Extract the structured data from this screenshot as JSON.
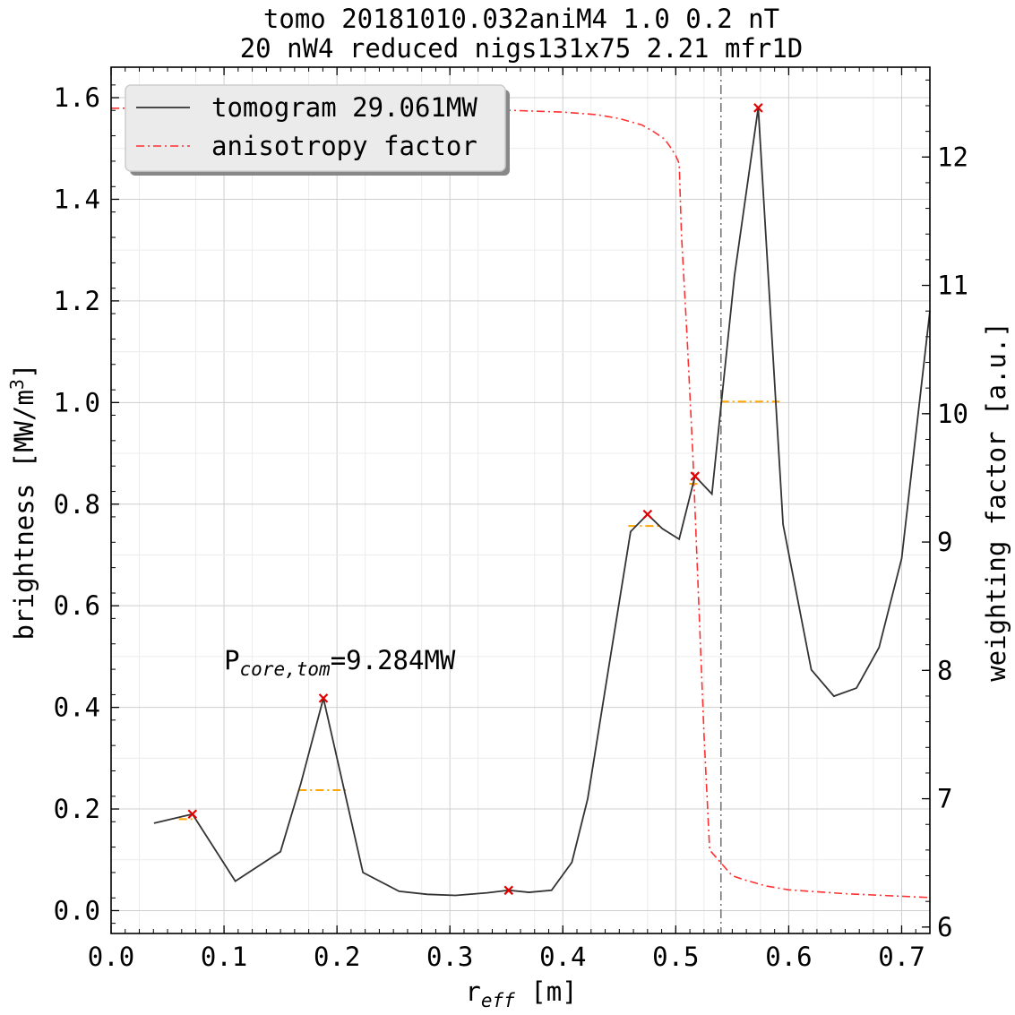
{
  "chart_data": {
    "type": "line",
    "title_lines": [
      "tomo 20181010.032aniM4  1.0 0.2  nT",
      "20 nW4 reduced nigs131x75 2.21 mfr1D"
    ],
    "xlabel": {
      "main": "r",
      "sub": "eff",
      "rest": " [m]"
    },
    "ylabel": {
      "main": "brightness [MW/m",
      "sup": "3",
      "rest": "]"
    },
    "y2label": "weighting factor [a.u.]",
    "xlim": [
      0.0,
      0.725
    ],
    "ylim": [
      -0.045,
      1.66
    ],
    "y2lim": [
      5.95,
      12.7
    ],
    "xticks": [
      "0.0",
      "0.1",
      "0.2",
      "0.3",
      "0.4",
      "0.5",
      "0.6",
      "0.7"
    ],
    "yticks": [
      "0.0",
      "0.2",
      "0.4",
      "0.6",
      "0.8",
      "1.0",
      "1.2",
      "1.4",
      "1.6"
    ],
    "y2ticks": [
      "6",
      "7",
      "8",
      "9",
      "10",
      "11",
      "12"
    ],
    "grid": true,
    "legend_position": "top-left",
    "annotation": {
      "main": "P",
      "sub": "core,tom",
      "rest": "=9.284MW",
      "x": 0.1,
      "y": 0.475
    },
    "vline_x": 0.54,
    "colors": {
      "tomogram": "#333333",
      "anisotropy": "#ff3030",
      "peaks": "#e00000",
      "segments": "#ffa500",
      "vline": "#777777"
    },
    "series": [
      {
        "name": "tomogram 29.061MW",
        "axis": "left",
        "x": [
          0.038,
          0.072,
          0.11,
          0.15,
          0.168,
          0.188,
          0.223,
          0.255,
          0.28,
          0.305,
          0.333,
          0.352,
          0.37,
          0.39,
          0.408,
          0.422,
          0.44,
          0.46,
          0.475,
          0.488,
          0.503,
          0.517,
          0.532,
          0.552,
          0.573,
          0.595,
          0.62,
          0.64,
          0.66,
          0.68,
          0.7,
          0.725
        ],
        "y": [
          0.172,
          0.19,
          0.058,
          0.116,
          0.25,
          0.418,
          0.075,
          0.038,
          0.032,
          0.03,
          0.035,
          0.04,
          0.036,
          0.04,
          0.095,
          0.22,
          0.47,
          0.746,
          0.78,
          0.752,
          0.731,
          0.855,
          0.82,
          1.25,
          1.58,
          0.76,
          0.474,
          0.422,
          0.438,
          0.518,
          0.693,
          1.18
        ]
      },
      {
        "name": "anisotropy factor",
        "axis": "right",
        "x": [
          0.0,
          0.1,
          0.2,
          0.3,
          0.35,
          0.4,
          0.43,
          0.45,
          0.47,
          0.48,
          0.49,
          0.495,
          0.5,
          0.503,
          0.505,
          0.51,
          0.515,
          0.52,
          0.525,
          0.53,
          0.54,
          0.55,
          0.56,
          0.58,
          0.6,
          0.65,
          0.7,
          0.725
        ],
        "y": [
          12.38,
          12.38,
          12.37,
          12.37,
          12.365,
          12.35,
          12.33,
          12.3,
          12.25,
          12.2,
          12.14,
          12.08,
          12.01,
          11.95,
          11.4,
          10.6,
          9.7,
          8.6,
          7.5,
          6.6,
          6.5,
          6.4,
          6.37,
          6.32,
          6.29,
          6.26,
          6.24,
          6.23
        ]
      }
    ],
    "peaks": {
      "x": [
        0.072,
        0.188,
        0.352,
        0.475,
        0.517,
        0.573
      ],
      "y": [
        0.19,
        0.418,
        0.04,
        0.78,
        0.855,
        1.58
      ]
    },
    "segments": [
      {
        "x1": 0.06,
        "x2": 0.075,
        "y": 0.18
      },
      {
        "x1": 0.166,
        "x2": 0.208,
        "y": 0.237
      },
      {
        "x1": 0.458,
        "x2": 0.485,
        "y": 0.757
      },
      {
        "x1": 0.512,
        "x2": 0.522,
        "y": 0.84
      },
      {
        "x1": 0.54,
        "x2": 0.592,
        "y": 1.002
      }
    ]
  }
}
